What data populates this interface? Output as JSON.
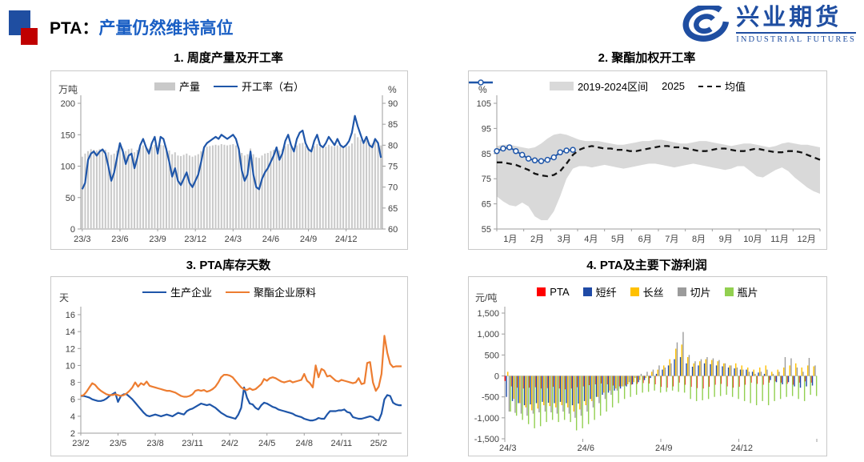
{
  "header": {
    "title_prefix": "PTA：",
    "title_main": "产量仍然维持高位",
    "logo_cn": "兴业期货",
    "logo_en": "INDUSTRIAL FUTURES"
  },
  "colors": {
    "accent_blue": "#1A5FC4",
    "deco_blue": "#1F4EA1",
    "deco_red": "#C00000",
    "line_blue": "#1F56A9",
    "line_orange": "#ED7D31",
    "bar_gray": "#C9C9C9",
    "band_gray": "#D9D9D9"
  },
  "chart_data": [
    {
      "type": "bar",
      "subtype": "bar+line-dual-axis",
      "title": "1. 周度产量及开工率",
      "unit_left": "万吨",
      "unit_right": "%",
      "bar_color": "#C9C9C9",
      "line_color": "#1F56A9",
      "legend": [
        {
          "label": "产量",
          "swatch": "bar",
          "color": "#C9C9C9"
        },
        {
          "label": "开工率（右）",
          "swatch": "line",
          "color": "#1F56A9"
        }
      ],
      "left_axis": {
        "min": 0,
        "max": 200,
        "ticks": [
          0,
          50,
          100,
          150,
          200
        ]
      },
      "right_axis": {
        "min": 60,
        "max": 90,
        "ticks": [
          60,
          65,
          70,
          75,
          80,
          85,
          90
        ]
      },
      "x_tick_labels": [
        "23/3",
        "23/6",
        "23/9",
        "23/12",
        "24/3",
        "24/6",
        "24/9",
        "24/12"
      ],
      "x_tick_step": 13,
      "bars": [
        115,
        120,
        124,
        127,
        126,
        125,
        127,
        128,
        126,
        122,
        118,
        120,
        125,
        131,
        128,
        124,
        127,
        128,
        122,
        126,
        130,
        133,
        130,
        128,
        131,
        134,
        128,
        134,
        133,
        129,
        125,
        119,
        122,
        117,
        116,
        118,
        120,
        117,
        115,
        117,
        119,
        124,
        130,
        131,
        132,
        133,
        134,
        133,
        135,
        134,
        133,
        134,
        135,
        133,
        129,
        121,
        117,
        119,
        128,
        119,
        114,
        113,
        117,
        120,
        121,
        124,
        126,
        130,
        125,
        127,
        132,
        135,
        131,
        128,
        133,
        136,
        137,
        132,
        129,
        128,
        132,
        135,
        131,
        130,
        131,
        134,
        132,
        131,
        133,
        131,
        130,
        131,
        132,
        136,
        152,
        146,
        142,
        138,
        141,
        137,
        136,
        140,
        138,
        133
      ],
      "line": [
        69.5,
        71,
        76.5,
        78,
        78.5,
        77.5,
        78.5,
        79,
        78,
        75,
        71.5,
        73.5,
        77,
        80.5,
        78.5,
        75.5,
        77.5,
        78,
        74.5,
        77,
        80,
        81.5,
        79.5,
        78,
        80.5,
        82,
        78,
        82,
        81.5,
        79,
        76,
        72.5,
        74.5,
        71.5,
        70.5,
        72,
        73.5,
        71,
        70,
        71.5,
        73,
        76,
        79.5,
        80.5,
        81,
        81.5,
        82,
        81.5,
        82.5,
        82,
        81.5,
        82,
        82.5,
        81.5,
        79,
        74,
        71.5,
        73,
        78.5,
        73,
        70,
        69.5,
        72,
        73.5,
        74.5,
        76,
        77.5,
        79.5,
        76.5,
        78,
        81,
        82.5,
        80,
        78.5,
        81.5,
        83,
        83.5,
        80.5,
        79,
        78.5,
        81,
        82.5,
        80,
        79.5,
        80.5,
        82,
        81,
        80,
        81.5,
        80,
        79.5,
        80,
        81,
        83,
        87,
        84.5,
        82.5,
        80.5,
        82,
        80,
        79.5,
        81.5,
        80.5,
        77
      ]
    },
    {
      "type": "area",
      "subtype": "range-band+mean+current-year",
      "title": "2. 聚酯加权开工率",
      "unit_left": "%",
      "band_color": "#D9D9D9",
      "mean_color": "#141414",
      "line_color": "#1F56A9",
      "legend": [
        {
          "label": "2019-2024区间",
          "swatch": "band",
          "color": "#D9D9D9"
        },
        {
          "label": "2025",
          "swatch": "line-marker",
          "color": "#1F56A9"
        },
        {
          "label": "均值",
          "swatch": "dash",
          "color": "#141414"
        }
      ],
      "left_axis": {
        "min": 55,
        "max": 105,
        "ticks": [
          55,
          65,
          75,
          85,
          95,
          105
        ]
      },
      "x_tick_labels": [
        "1月",
        "2月",
        "3月",
        "4月",
        "5月",
        "6月",
        "7月",
        "8月",
        "9月",
        "10月",
        "11月",
        "12月"
      ],
      "band_upper": [
        88,
        88.5,
        88.5,
        88,
        87.5,
        87,
        87.5,
        89,
        91,
        92.5,
        93,
        92.5,
        91.5,
        90.5,
        90,
        90,
        90,
        89.5,
        89,
        88.5,
        88.5,
        89,
        89.5,
        90,
        90,
        90.5,
        90.5,
        90,
        89.5,
        89,
        89,
        89.5,
        90,
        90,
        89.5,
        89,
        88.5,
        88,
        88.5,
        89,
        89,
        88.5,
        88,
        87.5,
        88,
        89,
        89.5,
        89,
        88.5,
        88.5,
        88,
        87.5
      ],
      "band_lower": [
        68,
        66,
        64.5,
        64,
        65.5,
        64,
        60,
        58.5,
        58.5,
        62,
        68,
        75,
        79,
        80,
        80,
        79.5,
        80,
        80.5,
        80,
        79.5,
        79,
        79.5,
        80,
        80.5,
        81,
        81,
        80.5,
        80,
        79.5,
        80,
        80.5,
        81,
        80.5,
        80,
        79.5,
        79,
        78.5,
        79,
        80,
        80,
        78,
        76,
        75.5,
        77,
        78.5,
        79.5,
        78,
        75.5,
        73.5,
        71.5,
        70,
        69
      ],
      "mean": [
        81.5,
        81.5,
        81,
        80.5,
        79.5,
        78.5,
        77,
        76.3,
        76,
        76.5,
        78,
        81,
        84.5,
        86.5,
        87.5,
        88,
        87.5,
        87,
        87,
        86.5,
        86.5,
        86,
        86,
        86.5,
        87,
        87.5,
        88,
        88,
        87.5,
        87.5,
        87,
        86.5,
        86,
        86,
        86.5,
        87,
        87,
        86.5,
        86,
        86,
        86.5,
        87,
        86.5,
        86,
        85.5,
        85.5,
        86,
        86,
        85.5,
        84.5,
        83.5,
        82.5
      ],
      "y2025": [
        86,
        87,
        87.5,
        86,
        84.5,
        83,
        82.3,
        82,
        82.5,
        83.5,
        85.5,
        86.2,
        86.5
      ]
    },
    {
      "type": "line",
      "title": "3. PTA库存天数",
      "unit_left": "天",
      "legend": [
        {
          "label": "生产企业",
          "swatch": "line",
          "color": "#1F56A9"
        },
        {
          "label": "聚酯企业原料",
          "swatch": "line",
          "color": "#ED7D31"
        }
      ],
      "left_axis": {
        "min": 2,
        "max": 16,
        "ticks": [
          2,
          4,
          6,
          8,
          10,
          12,
          14,
          16
        ]
      },
      "x_tick_labels": [
        "23/2",
        "23/5",
        "23/8",
        "23/11",
        "24/2",
        "24/5",
        "24/8",
        "24/11",
        "25/2"
      ],
      "x_tick_step": 13,
      "series": [
        {
          "name": "生产企业",
          "color": "#1F56A9",
          "values": [
            6.4,
            6.4,
            6.3,
            6.2,
            6.0,
            5.9,
            5.8,
            5.8,
            5.9,
            6.1,
            6.4,
            6.6,
            6.8,
            5.7,
            6.4,
            6.6,
            6.6,
            6.3,
            6.0,
            5.6,
            5.2,
            4.8,
            4.4,
            4.1,
            4.0,
            4.1,
            4.2,
            4.1,
            4.0,
            4.1,
            4.2,
            4.1,
            4.0,
            4.2,
            4.4,
            4.3,
            4.2,
            4.6,
            4.8,
            4.9,
            5.1,
            5.3,
            5.5,
            5.4,
            5.3,
            5.4,
            5.2,
            5.0,
            4.7,
            4.4,
            4.2,
            4.0,
            3.9,
            3.8,
            3.7,
            4.2,
            5.0,
            7.4,
            6.2,
            5.5,
            5.4,
            5.0,
            4.8,
            5.3,
            5.6,
            5.5,
            5.3,
            5.1,
            5.0,
            4.8,
            4.7,
            4.6,
            4.5,
            4.4,
            4.3,
            4.1,
            4.0,
            3.9,
            3.7,
            3.6,
            3.5,
            3.5,
            3.6,
            3.8,
            3.7,
            3.7,
            4.2,
            4.6,
            4.6,
            4.6,
            4.7,
            4.7,
            4.8,
            4.5,
            4.4,
            3.9,
            3.8,
            3.7,
            3.7,
            3.8,
            3.9,
            4.0,
            3.9,
            3.6,
            3.5,
            4.3,
            6.0,
            6.5,
            6.4,
            5.6,
            5.4,
            5.3,
            5.3
          ]
        },
        {
          "name": "聚酯企业原料",
          "color": "#ED7D31",
          "values": [
            6.4,
            6.5,
            6.9,
            7.4,
            7.9,
            7.7,
            7.3,
            7.0,
            6.8,
            6.6,
            6.5,
            6.5,
            6.6,
            6.5,
            6.4,
            6.5,
            6.7,
            7.0,
            7.4,
            8.0,
            7.5,
            7.9,
            7.7,
            8.1,
            7.6,
            7.5,
            7.4,
            7.3,
            7.2,
            7.1,
            7.0,
            7.0,
            6.9,
            6.8,
            6.6,
            6.4,
            6.3,
            6.3,
            6.4,
            6.6,
            7.0,
            7.1,
            7.0,
            7.1,
            6.9,
            7.0,
            7.2,
            7.5,
            8.0,
            8.6,
            8.9,
            8.9,
            8.8,
            8.6,
            8.2,
            7.8,
            7.4,
            7.2,
            7.1,
            7.3,
            7.1,
            7.2,
            7.5,
            7.8,
            8.4,
            8.2,
            8.5,
            8.6,
            8.5,
            8.3,
            8.1,
            8.0,
            8.1,
            8.2,
            8.0,
            8.1,
            8.2,
            8.3,
            9.0,
            8.2,
            7.9,
            7.4,
            10.0,
            8.6,
            9.6,
            9.4,
            8.7,
            8.8,
            8.5,
            8.2,
            8.1,
            8.3,
            8.2,
            8.1,
            8.0,
            7.9,
            8.0,
            8.5,
            7.8,
            7.9,
            10.3,
            10.4,
            8.0,
            7.0,
            7.5,
            9.0,
            13.5,
            11.5,
            10.2,
            9.8,
            9.9,
            9.9,
            9.9
          ]
        }
      ]
    },
    {
      "type": "bar",
      "subtype": "grouped-bar",
      "title": "4. PTA及主要下游利润",
      "unit_left": "元/吨",
      "legend": [
        {
          "label": "PTA",
          "swatch": "square",
          "color": "#FF0000"
        },
        {
          "label": "短纤",
          "swatch": "square",
          "color": "#1F4AA6"
        },
        {
          "label": "长丝",
          "swatch": "square",
          "color": "#FFC000"
        },
        {
          "label": "切片",
          "swatch": "square",
          "color": "#9B9B9B"
        },
        {
          "label": "瓶片",
          "swatch": "square",
          "color": "#92D050"
        }
      ],
      "left_axis": {
        "min": -1500,
        "max": 1500,
        "ticks": [
          -1500,
          -1000,
          -500,
          0,
          500,
          1000,
          1500
        ],
        "tick_labels": [
          "-1,500",
          "-1,000",
          "-500",
          "0",
          "500",
          "1,000",
          "1,500"
        ]
      },
      "x_tick_labels": [
        "24/3",
        "24/6",
        "24/9",
        "24/12"
      ],
      "x_tick_step": 13,
      "series": [
        {
          "name": "PTA",
          "color": "#FF0000",
          "values": [
            -120,
            -250,
            -280,
            -300,
            -280,
            -270,
            -300,
            -290,
            -260,
            -300,
            -320,
            -300,
            -270,
            -250,
            -220,
            -200,
            -180,
            -200,
            -230,
            -250,
            -230,
            -210,
            -190,
            -170,
            -180,
            -200,
            -260,
            -280,
            -250,
            -160,
            -210,
            -260,
            -290,
            -300,
            -260,
            -210,
            -190,
            -250,
            -280,
            -260,
            -210,
            -160,
            -190,
            -210,
            -160,
            -130,
            -160,
            -190,
            -210,
            -160,
            -130,
            -160
          ]
        },
        {
          "name": "短纤",
          "color": "#1F4AA6",
          "values": [
            -500,
            -600,
            -650,
            -700,
            -680,
            -650,
            -620,
            -640,
            -650,
            -620,
            -650,
            -700,
            -660,
            -600,
            -550,
            -500,
            -450,
            -400,
            -350,
            -300,
            -250,
            -200,
            -150,
            -100,
            -50,
            50,
            150,
            250,
            400,
            450,
            300,
            220,
            250,
            300,
            280,
            250,
            230,
            200,
            180,
            150,
            150,
            100,
            80,
            50,
            -100,
            -150,
            -200,
            -150,
            -250,
            -280,
            -250,
            -230
          ]
        },
        {
          "name": "长丝",
          "color": "#FFC000",
          "values": [
            100,
            -550,
            -650,
            -750,
            -820,
            -780,
            -700,
            -720,
            -750,
            -700,
            -750,
            -850,
            -800,
            -700,
            -600,
            -500,
            -400,
            -350,
            -300,
            -250,
            -200,
            -150,
            -100,
            -50,
            100,
            150,
            250,
            400,
            650,
            750,
            450,
            300,
            350,
            400,
            380,
            350,
            300,
            250,
            300,
            250,
            200,
            150,
            200,
            250,
            100,
            150,
            200,
            250,
            300,
            200,
            250,
            230
          ]
        },
        {
          "name": "切片",
          "color": "#9B9B9B",
          "values": [
            -850,
            -880,
            -900,
            -950,
            -900,
            -870,
            -850,
            -870,
            -900,
            -850,
            -900,
            -1000,
            -950,
            -850,
            -750,
            -650,
            -550,
            -450,
            -350,
            -250,
            -150,
            -50,
            50,
            100,
            150,
            250,
            200,
            300,
            800,
            1050,
            500,
            350,
            400,
            450,
            420,
            380,
            300,
            250,
            200,
            150,
            100,
            50,
            100,
            150,
            50,
            100,
            450,
            420,
            200,
            100,
            430,
            250
          ]
        },
        {
          "name": "瓶片",
          "color": "#92D050",
          "values": [
            -850,
            -950,
            -1050,
            -1150,
            -1250,
            -1200,
            -1100,
            -1050,
            -1100,
            -1050,
            -1100,
            -1300,
            -1250,
            -1150,
            -1050,
            -950,
            -850,
            -750,
            -650,
            -550,
            -500,
            -450,
            -400,
            -380,
            -350,
            -400,
            -380,
            -350,
            -380,
            -400,
            -550,
            -600,
            -580,
            -550,
            -500,
            -480,
            -450,
            -500,
            -550,
            -600,
            -650,
            -700,
            -600,
            -700,
            -600,
            -550,
            -500,
            -480,
            -550,
            -600,
            -450,
            -480
          ]
        }
      ]
    }
  ]
}
